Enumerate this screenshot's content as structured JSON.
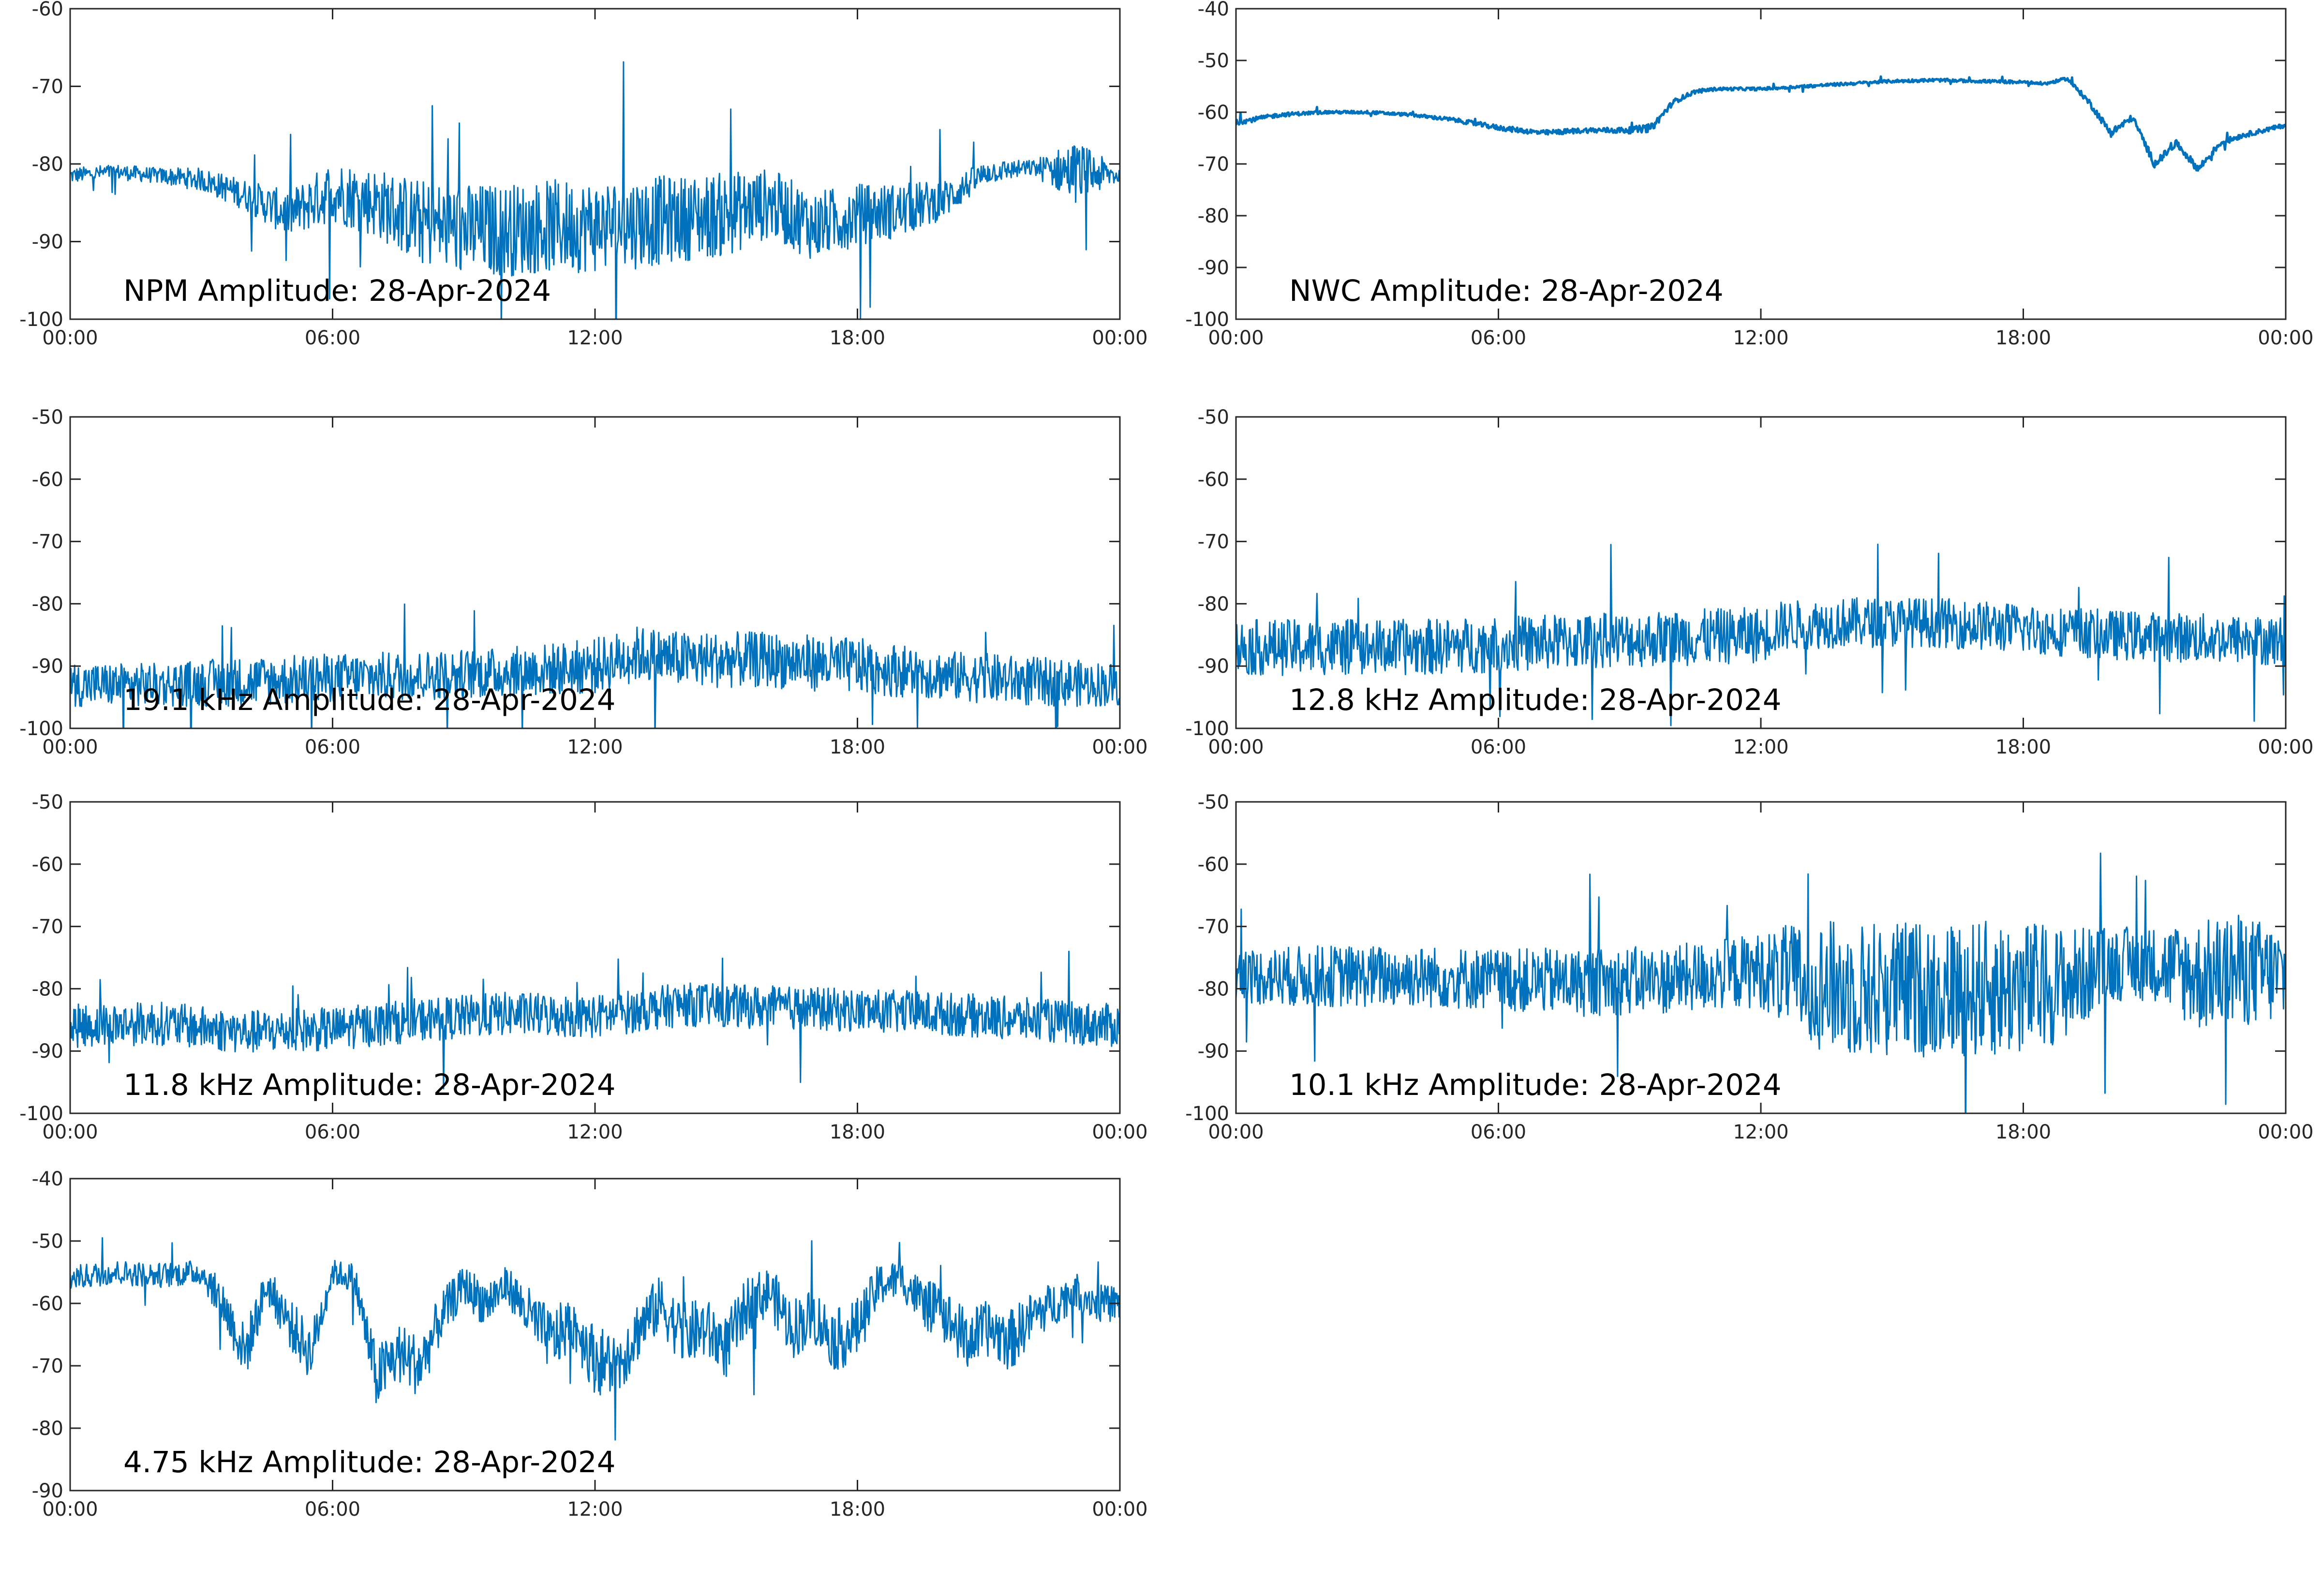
{
  "figure": {
    "line_color": "#0072BD",
    "axes_color": "#262626",
    "background": "#ffffff"
  },
  "chart_data": [
    {
      "type": "line",
      "title": "NPM Amplitude: 28-Apr-2024",
      "x_ticks": [
        "00:00",
        "06:00",
        "12:00",
        "18:00",
        "00:00"
      ],
      "ylim": [
        -100,
        -60
      ],
      "y_ticks": [
        -100,
        -90,
        -80,
        -70,
        -60
      ],
      "grid": false,
      "series": [
        {
          "x": [
            0,
            1,
            2,
            3,
            4,
            5,
            6,
            7,
            8,
            9,
            10,
            11,
            12,
            13,
            14,
            15,
            16,
            17,
            18,
            19,
            20,
            21,
            22,
            23,
            24
          ],
          "values": [
            -81.5,
            -81.0,
            -81.5,
            -82.0,
            -84.0,
            -86.5,
            -83.5,
            -85.0,
            -87.5,
            -88.5,
            -88.5,
            -88.0,
            -88.0,
            -87.5,
            -87.0,
            -86.5,
            -85.0,
            -88.0,
            -86.5,
            -86.0,
            -84.5,
            -81.0,
            -80.5,
            -81.0,
            -81.5
          ],
          "noise": [
            1.0,
            1.0,
            1.0,
            1.5,
            2.0,
            3.0,
            4.0,
            4.5,
            5.5,
            6.0,
            6.0,
            6.0,
            6.0,
            6.0,
            5.5,
            5.5,
            4.5,
            4.5,
            4.0,
            3.5,
            2.5,
            1.5,
            1.0,
            4.0,
            1.0
          ]
        }
      ]
    },
    {
      "type": "line",
      "title": "NWC Amplitude: 28-Apr-2024",
      "x_ticks": [
        "00:00",
        "06:00",
        "12:00",
        "18:00",
        "00:00"
      ],
      "ylim": [
        -100,
        -40
      ],
      "y_ticks": [
        -100,
        -90,
        -80,
        -70,
        -60,
        -50,
        -40
      ],
      "grid": false,
      "series": [
        {
          "x": [
            0,
            1,
            2,
            3,
            4,
            5,
            6,
            7,
            8,
            9,
            9.5,
            10,
            10.5,
            11,
            12,
            13,
            14,
            15,
            16,
            17,
            18,
            18.5,
            19,
            19.5,
            20,
            20.5,
            21,
            21.5,
            22,
            22.5,
            23,
            24
          ],
          "values": [
            -62.0,
            -60.5,
            -60.0,
            -60.0,
            -60.5,
            -61.5,
            -63.0,
            -64.0,
            -63.5,
            -63.5,
            -63.0,
            -58.0,
            -56.0,
            -55.5,
            -55.5,
            -55.0,
            -54.5,
            -54.0,
            -53.8,
            -54.0,
            -54.2,
            -54.5,
            -53.5,
            -58.0,
            -64.0,
            -61.0,
            -70.0,
            -66.0,
            -71.0,
            -66.0,
            -64.5,
            -62.5
          ],
          "noise": [
            0.5,
            0.4,
            0.3,
            0.3,
            0.3,
            0.4,
            0.5,
            0.5,
            0.5,
            0.6,
            0.8,
            0.5,
            0.4,
            0.3,
            0.3,
            0.3,
            0.3,
            0.3,
            0.3,
            0.3,
            0.3,
            0.3,
            0.3,
            0.6,
            0.8,
            0.6,
            0.8,
            0.6,
            0.8,
            0.6,
            0.5,
            0.4
          ]
        }
      ]
    },
    {
      "type": "line",
      "title": "19.1 kHz Amplitude: 28-Apr-2024",
      "x_ticks": [
        "00:00",
        "06:00",
        "12:00",
        "18:00",
        "00:00"
      ],
      "ylim": [
        -100,
        -50
      ],
      "y_ticks": [
        -100,
        -90,
        -80,
        -70,
        -60,
        -50
      ],
      "grid": false,
      "series": [
        {
          "x": [
            0,
            2,
            4,
            6,
            8,
            10,
            12,
            13,
            14,
            16,
            18,
            20,
            22,
            24
          ],
          "values": [
            -93.0,
            -93.0,
            -92.5,
            -92.0,
            -91.5,
            -91.0,
            -90.0,
            -88.0,
            -89.0,
            -89.0,
            -90.0,
            -91.5,
            -92.5,
            -93.0
          ],
          "noise": [
            3.5,
            3.5,
            4.0,
            4.0,
            4.0,
            4.0,
            4.5,
            4.5,
            4.5,
            4.5,
            4.5,
            4.0,
            4.0,
            3.5
          ]
        }
      ]
    },
    {
      "type": "line",
      "title": "12.8 kHz Amplitude: 28-Apr-2024",
      "x_ticks": [
        "00:00",
        "06:00",
        "12:00",
        "18:00",
        "00:00"
      ],
      "ylim": [
        -100,
        -50
      ],
      "y_ticks": [
        -100,
        -90,
        -80,
        -70,
        -60,
        -50
      ],
      "grid": false,
      "series": [
        {
          "x": [
            0,
            2,
            4,
            6,
            8,
            10,
            12,
            12.5,
            14,
            16,
            18,
            20,
            22,
            24
          ],
          "values": [
            -87.0,
            -87.0,
            -87.0,
            -86.5,
            -86.0,
            -85.5,
            -85.0,
            -83.5,
            -83.0,
            -83.0,
            -84.0,
            -85.0,
            -85.5,
            -86.0
          ],
          "noise": [
            4.5,
            4.5,
            4.5,
            4.5,
            4.5,
            4.5,
            4.5,
            4.0,
            4.0,
            4.0,
            4.0,
            4.0,
            4.0,
            4.0
          ]
        }
      ]
    },
    {
      "type": "line",
      "title": "11.8 kHz Amplitude: 28-Apr-2024",
      "x_ticks": [
        "00:00",
        "06:00",
        "12:00",
        "18:00",
        "00:00"
      ],
      "ylim": [
        -100,
        -50
      ],
      "y_ticks": [
        -100,
        -90,
        -80,
        -70,
        -60,
        -50
      ],
      "grid": false,
      "series": [
        {
          "x": [
            0,
            2,
            4,
            6,
            8,
            10,
            12,
            14,
            16,
            18,
            20,
            22,
            24
          ],
          "values": [
            -86.0,
            -85.5,
            -87.0,
            -86.5,
            -85.0,
            -84.0,
            -84.5,
            -82.5,
            -83.0,
            -83.5,
            -84.0,
            -85.0,
            -86.0
          ],
          "noise": [
            3.5,
            3.5,
            3.5,
            3.5,
            3.5,
            3.5,
            3.5,
            3.5,
            3.5,
            3.5,
            3.5,
            3.5,
            3.5
          ]
        }
      ]
    },
    {
      "type": "line",
      "title": "10.1 kHz Amplitude: 28-Apr-2024",
      "x_ticks": [
        "00:00",
        "06:00",
        "12:00",
        "18:00",
        "00:00"
      ],
      "ylim": [
        -100,
        -50
      ],
      "y_ticks": [
        -100,
        -90,
        -80,
        -70,
        -60,
        -50
      ],
      "grid": false,
      "series": [
        {
          "x": [
            0,
            2,
            4,
            6,
            8,
            10,
            12,
            13,
            14,
            16,
            18,
            19,
            20,
            21,
            22,
            23,
            24
          ],
          "values": [
            -78.0,
            -78.0,
            -78.0,
            -78.5,
            -79.0,
            -78.5,
            -77.0,
            -79.0,
            -80.0,
            -80.0,
            -80.0,
            -79.0,
            -76.0,
            -76.0,
            -78.0,
            -77.0,
            -78.0
          ],
          "noise": [
            4.5,
            5.0,
            5.0,
            5.0,
            5.5,
            5.5,
            6.0,
            10.0,
            11.0,
            11.0,
            11.0,
            9.0,
            6.0,
            6.0,
            9.0,
            9.0,
            8.0
          ]
        }
      ]
    },
    {
      "type": "line",
      "title": "4.75 kHz Amplitude: 28-Apr-2024",
      "x_ticks": [
        "00:00",
        "06:00",
        "12:00",
        "18:00",
        "00:00"
      ],
      "ylim": [
        -90,
        -40
      ],
      "y_ticks": [
        -90,
        -80,
        -70,
        -60,
        -50,
        -40
      ],
      "grid": false,
      "series": [
        {
          "x": [
            0,
            1,
            2,
            3,
            3.5,
            4,
            4.5,
            5,
            5.5,
            6,
            6.5,
            7,
            7.5,
            8,
            8.5,
            9,
            9.5,
            10,
            10.5,
            11,
            11.5,
            12,
            12.5,
            13,
            13.5,
            14,
            14.5,
            15,
            15.5,
            16,
            16.5,
            17,
            17.5,
            18,
            18.5,
            19,
            19.5,
            20,
            20.5,
            21,
            21.5,
            22,
            22.5,
            23,
            23.5,
            24
          ],
          "values": [
            -56.0,
            -55.0,
            -55.5,
            -55.0,
            -60.0,
            -68.0,
            -57.0,
            -63.0,
            -68.0,
            -55.0,
            -56.0,
            -72.0,
            -68.0,
            -70.0,
            -62.0,
            -57.0,
            -60.0,
            -57.0,
            -62.0,
            -66.0,
            -63.0,
            -69.0,
            -70.0,
            -64.0,
            -60.0,
            -65.0,
            -64.0,
            -67.0,
            -60.0,
            -58.0,
            -64.0,
            -62.0,
            -66.0,
            -64.0,
            -57.0,
            -56.0,
            -60.0,
            -62.0,
            -66.0,
            -64.0,
            -66.0,
            -62.0,
            -60.0,
            -58.0,
            -60.0,
            -60.0
          ],
          "noise": [
            2.0,
            2.0,
            2.0,
            2.0,
            3.5,
            4.5,
            3.0,
            4.0,
            4.5,
            2.0,
            2.5,
            5.0,
            5.0,
            5.0,
            4.0,
            3.0,
            4.0,
            3.0,
            4.5,
            5.0,
            4.5,
            5.5,
            5.5,
            5.0,
            4.5,
            5.0,
            5.0,
            5.0,
            4.5,
            4.0,
            5.0,
            4.5,
            5.0,
            5.0,
            3.5,
            3.0,
            4.0,
            4.5,
            5.0,
            4.5,
            5.0,
            4.0,
            3.5,
            3.0,
            3.0,
            3.0
          ]
        }
      ]
    }
  ]
}
